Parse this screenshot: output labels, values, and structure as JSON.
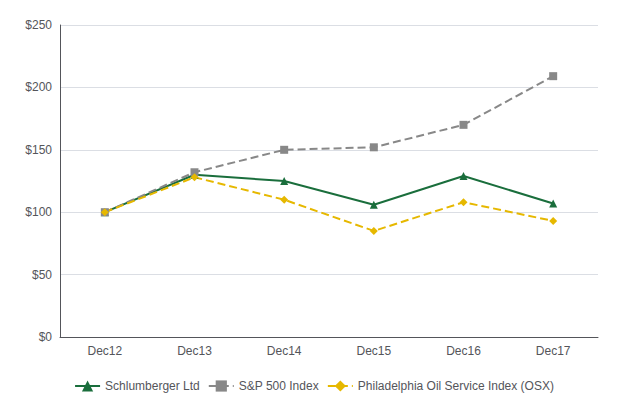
{
  "chart_data": {
    "type": "line",
    "categories": [
      "Dec12",
      "Dec13",
      "Dec14",
      "Dec15",
      "Dec16",
      "Dec17"
    ],
    "series": [
      {
        "name": "Schlumberger Ltd",
        "color": "#1a6e3c",
        "marker": "triangle",
        "line_style": "solid",
        "values": [
          100,
          130,
          125,
          106,
          129,
          107
        ]
      },
      {
        "name": "S&P 500 Index",
        "color": "#888888",
        "marker": "square",
        "line_style": "dashed",
        "values": [
          100,
          132,
          150,
          152,
          170,
          209
        ]
      },
      {
        "name": "Philadelphia Oil Service Index (OSX)",
        "color": "#e6b800",
        "marker": "diamond",
        "line_style": "dashed",
        "values": [
          100,
          128,
          110,
          85,
          108,
          93
        ]
      }
    ],
    "ylim": [
      0,
      250
    ],
    "yticks": [
      {
        "value": 0,
        "label": "$0"
      },
      {
        "value": 50,
        "label": "$50"
      },
      {
        "value": 100,
        "label": "$100"
      },
      {
        "value": 150,
        "label": "$150"
      },
      {
        "value": 200,
        "label": "$200"
      },
      {
        "value": 250,
        "label": "$250"
      }
    ],
    "grid": true,
    "legend": "bottom"
  }
}
